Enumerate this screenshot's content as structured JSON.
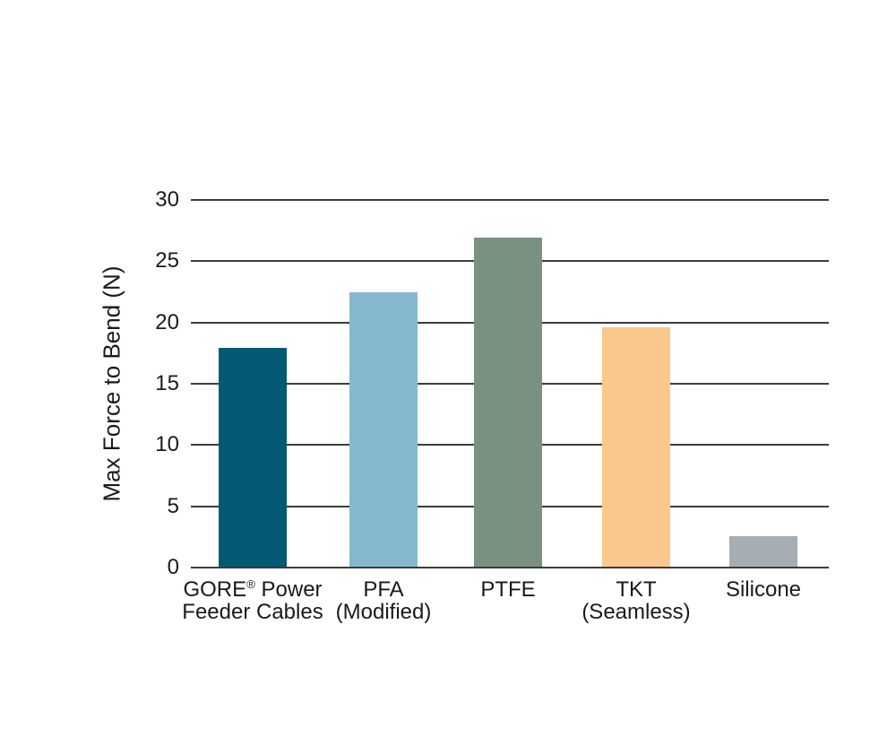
{
  "chart_data": {
    "type": "bar",
    "title": "",
    "xlabel": "",
    "ylabel": "Max Force to Bend (N)",
    "ylim": [
      0,
      30
    ],
    "yticks": [
      0,
      5,
      10,
      15,
      20,
      25,
      30
    ],
    "grid": true,
    "legend": false,
    "background_color": "#ffffff",
    "grid_color": "#3c3c3c",
    "text_color": "#1a1a1a",
    "categories": [
      "GORE® Power Feeder Cables",
      "PFA (Modified)",
      "PTFE",
      "TKT (Seamless)",
      "Silicone"
    ],
    "category_lines": [
      [
        "GORE® Power",
        "Feeder Cables"
      ],
      [
        "PFA",
        "(Modified)"
      ],
      [
        "PTFE"
      ],
      [
        "TKT",
        "(Seamless)"
      ],
      [
        "Silicone"
      ]
    ],
    "values": [
      17.9,
      22.5,
      26.9,
      19.6,
      2.6
    ],
    "bar_colors": [
      "#045A72",
      "#85B9CE",
      "#7A9181",
      "#FAC88D",
      "#A5ADB5"
    ]
  }
}
